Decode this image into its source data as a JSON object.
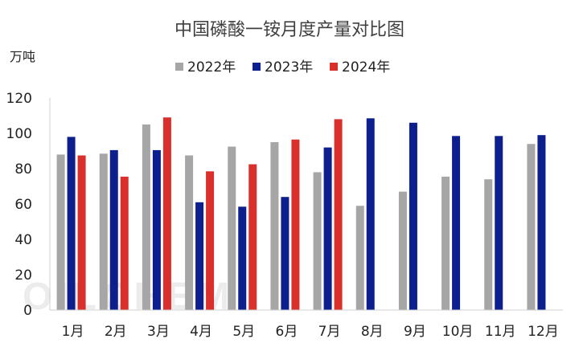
{
  "chart_data": {
    "type": "bar",
    "title": "中国磷酸一铵月度产量对比图",
    "ylabel": "万吨",
    "xlabel": "",
    "categories": [
      "1月",
      "2月",
      "3月",
      "4月",
      "5月",
      "6月",
      "7月",
      "8月",
      "9月",
      "10月",
      "11月",
      "12月"
    ],
    "series": [
      {
        "name": "2022年",
        "color": "#A6A6A6",
        "values": [
          88,
          88.5,
          105,
          87.5,
          92.5,
          95,
          78,
          59,
          67,
          75.5,
          74,
          94
        ]
      },
      {
        "name": "2023年",
        "color": "#0D1F8C",
        "values": [
          98,
          90.5,
          90.5,
          61,
          58.5,
          64,
          92,
          108.5,
          106,
          98.5,
          98.5,
          99
        ]
      },
      {
        "name": "2024年",
        "color": "#D9302B",
        "values": [
          87.5,
          75.5,
          109,
          78.5,
          82.5,
          96.5,
          108,
          null,
          null,
          null,
          null,
          null
        ]
      }
    ],
    "ylim": [
      0,
      120
    ],
    "yticks": [
      0,
      20,
      40,
      60,
      80,
      100,
      120
    ],
    "grid": false,
    "legend_position": "top-center"
  },
  "watermark": {
    "text": "OILCHEM"
  }
}
